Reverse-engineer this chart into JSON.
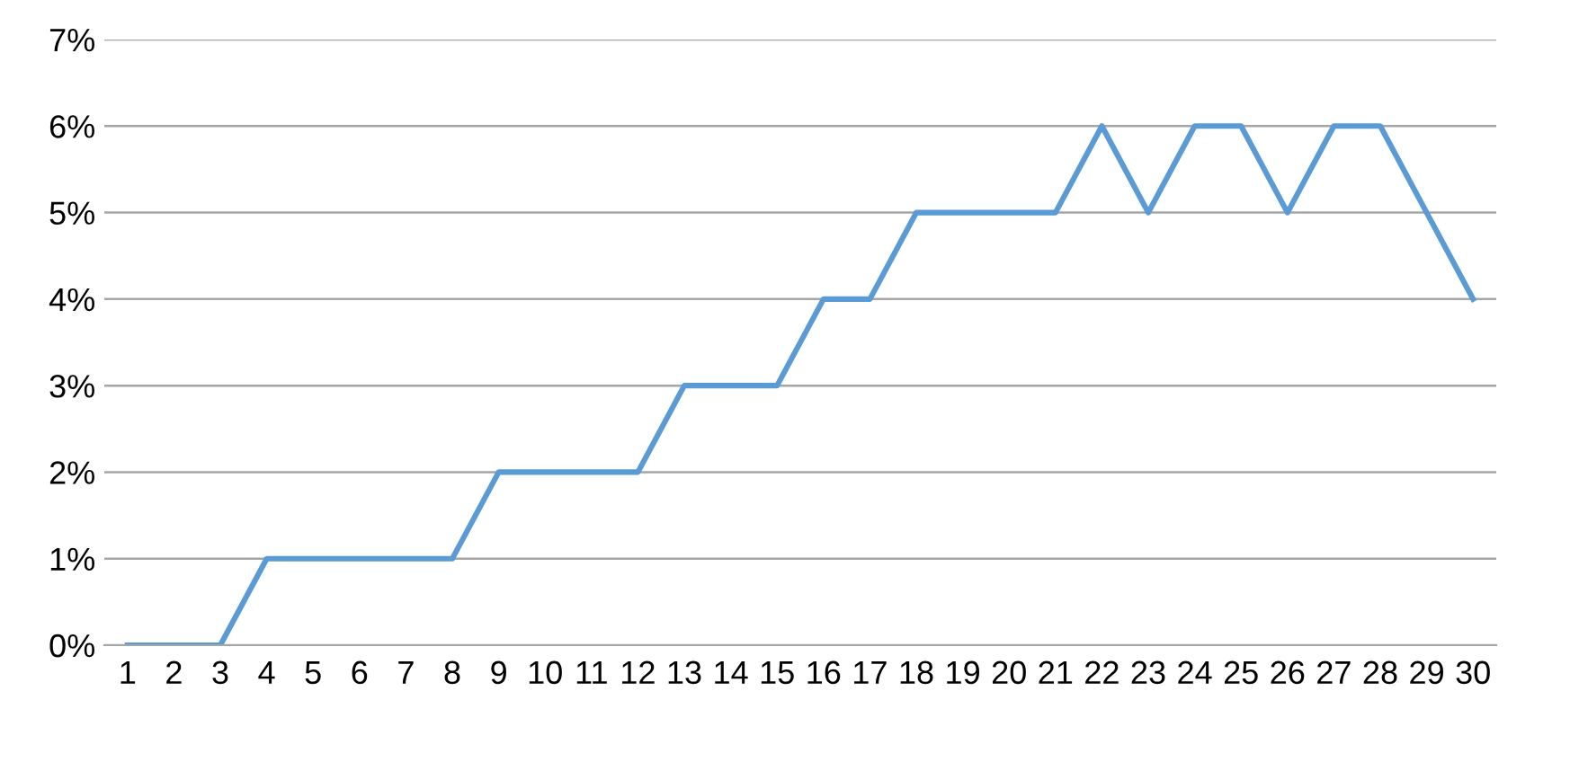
{
  "chart_data": {
    "type": "line",
    "categories": [
      "1",
      "2",
      "3",
      "4",
      "5",
      "6",
      "7",
      "8",
      "9",
      "10",
      "11",
      "12",
      "13",
      "14",
      "15",
      "16",
      "17",
      "18",
      "19",
      "20",
      "21",
      "22",
      "23",
      "24",
      "25",
      "26",
      "27",
      "28",
      "29",
      "30"
    ],
    "series": [
      {
        "color": "#5b9bd5",
        "values": [
          0,
          0,
          0,
          1,
          1,
          1,
          1,
          1,
          2,
          2,
          2,
          2,
          3,
          3,
          3,
          4,
          4,
          5,
          5,
          5,
          5,
          6,
          5,
          6,
          6,
          5,
          6,
          6,
          5,
          4
        ]
      }
    ],
    "ylim": [
      0,
      7
    ],
    "yticks": [
      {
        "value": 0,
        "label": "0%"
      },
      {
        "value": 1,
        "label": "1%"
      },
      {
        "value": 2,
        "label": "2%"
      },
      {
        "value": 3,
        "label": "3%"
      },
      {
        "value": 4,
        "label": "4%"
      },
      {
        "value": 5,
        "label": "5%"
      },
      {
        "value": 6,
        "label": "6%"
      },
      {
        "value": 7,
        "label": "7%"
      }
    ],
    "grid": "y",
    "legend": false,
    "marker": "none",
    "line_style": "solid"
  }
}
